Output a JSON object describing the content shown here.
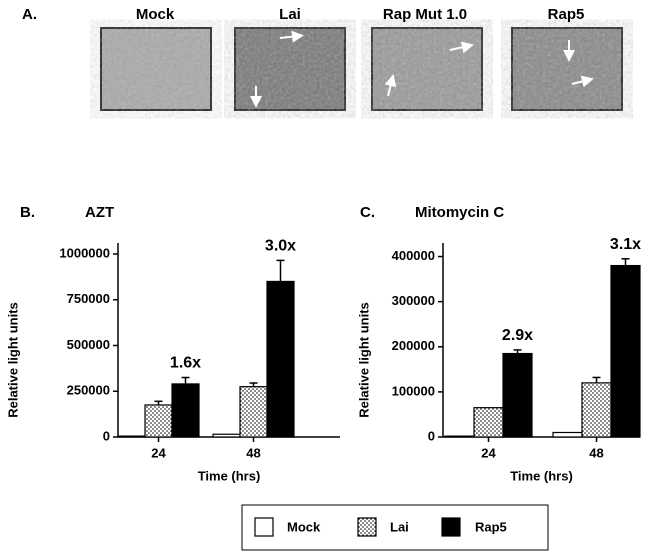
{
  "panel_a": {
    "label": "A.",
    "images": [
      {
        "caption": "Mock"
      },
      {
        "caption": "Lai"
      },
      {
        "caption": "Rap Mut 1.0"
      },
      {
        "caption": "Rap5"
      }
    ]
  },
  "chart_data": [
    {
      "type": "bar",
      "panel": "B.",
      "title": "AZT",
      "y_label": "Relative light units",
      "x_label": "Time (hrs)",
      "categories": [
        "24",
        "48"
      ],
      "series": [
        {
          "name": "Mock",
          "color": "#ffffff",
          "values": [
            5000,
            15000
          ],
          "errors": [
            null,
            null
          ]
        },
        {
          "name": "Lai",
          "color": "#ffffff",
          "pattern": "dots",
          "values": [
            175000,
            275000
          ],
          "errors": [
            20000,
            20000
          ]
        },
        {
          "name": "Rap5",
          "color": "#000000",
          "values": [
            290000,
            850000
          ],
          "errors": [
            35000,
            115000
          ]
        }
      ],
      "annotations": [
        "1.6x",
        "3.0x"
      ],
      "ylim": [
        0,
        1060000
      ],
      "yticks": [
        0,
        250000,
        500000,
        750000,
        1000000
      ]
    },
    {
      "type": "bar",
      "panel": "C.",
      "title": "Mitomycin C",
      "y_label": "Relative light units",
      "x_label": "Time (hrs)",
      "categories": [
        "24",
        "48"
      ],
      "series": [
        {
          "name": "Mock",
          "color": "#ffffff",
          "values": [
            2000,
            10000
          ],
          "errors": [
            null,
            null
          ]
        },
        {
          "name": "Lai",
          "color": "#ffffff",
          "pattern": "dots",
          "values": [
            65000,
            120000
          ],
          "errors": [
            null,
            12000
          ]
        },
        {
          "name": "Rap5",
          "color": "#000000",
          "values": [
            185000,
            380000
          ],
          "errors": [
            8000,
            15000
          ]
        }
      ],
      "annotations": [
        "2.9x",
        "3.1x"
      ],
      "ylim": [
        0,
        430000
      ],
      "yticks": [
        0,
        100000,
        200000,
        300000,
        400000
      ]
    }
  ]
}
